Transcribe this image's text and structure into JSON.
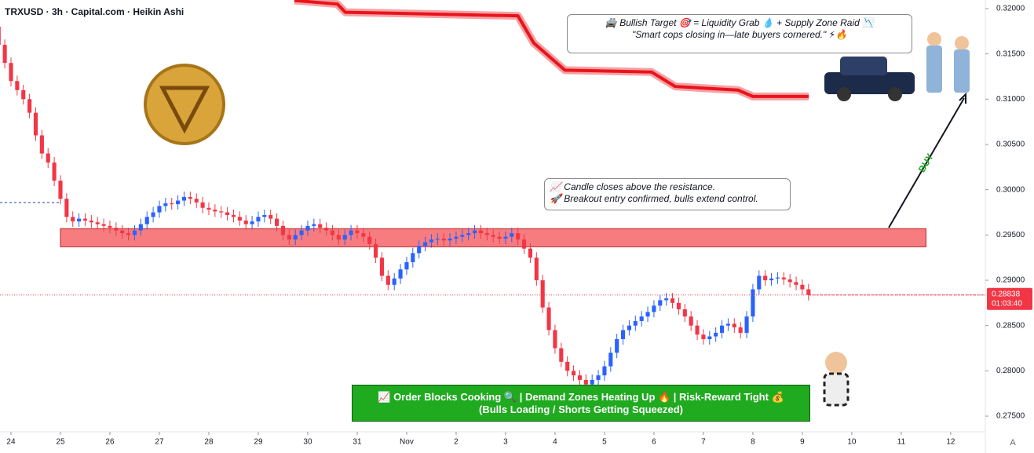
{
  "chart_data": {
    "type": "candlestick",
    "title": "TRXUSD · 3h · Capital.com · Heikin Ashi",
    "up_color": "#2962ff",
    "down_color": "#f23645",
    "xlim": [
      -0.222,
      19.7
    ],
    "ylim": [
      0.27327,
      0.32095
    ],
    "xticks": [
      {
        "value": 0,
        "label": "24"
      },
      {
        "value": 1,
        "label": "25"
      },
      {
        "value": 2,
        "label": "26"
      },
      {
        "value": 3,
        "label": "27"
      },
      {
        "value": 4,
        "label": "28"
      },
      {
        "value": 5,
        "label": "29"
      },
      {
        "value": 6,
        "label": "30"
      },
      {
        "value": 7,
        "label": "31"
      },
      {
        "value": 8,
        "label": "Nov"
      },
      {
        "value": 9,
        "label": "2"
      },
      {
        "value": 10,
        "label": "3"
      },
      {
        "value": 11,
        "label": "4"
      },
      {
        "value": 12,
        "label": "5"
      },
      {
        "value": 13,
        "label": "6"
      },
      {
        "value": 14,
        "label": "7"
      },
      {
        "value": 15,
        "label": "8"
      },
      {
        "value": 16,
        "label": "9"
      },
      {
        "value": 17,
        "label": "10"
      },
      {
        "value": 18,
        "label": "11"
      },
      {
        "value": 19,
        "label": "12"
      }
    ],
    "yticks": [
      {
        "value": 0.275,
        "label": "0.27500"
      },
      {
        "value": 0.28,
        "label": "0.28000"
      },
      {
        "value": 0.285,
        "label": "0.28500"
      },
      {
        "value": 0.29,
        "label": "0.29000"
      },
      {
        "value": 0.295,
        "label": "0.29500"
      },
      {
        "value": 0.3,
        "label": "0.30000"
      },
      {
        "value": 0.305,
        "label": "0.30500"
      },
      {
        "value": 0.31,
        "label": "0.31000"
      },
      {
        "value": 0.315,
        "label": "0.31500"
      },
      {
        "value": 0.32,
        "label": "0.32000"
      }
    ],
    "x": [
      -0.25,
      -0.125,
      0,
      0.125,
      0.25,
      0.375,
      0.5,
      0.625,
      0.75,
      0.875,
      1,
      1.125,
      1.25,
      1.375,
      1.5,
      1.625,
      1.75,
      1.875,
      2,
      2.125,
      2.25,
      2.375,
      2.5,
      2.625,
      2.75,
      2.875,
      3,
      3.125,
      3.25,
      3.375,
      3.5,
      3.625,
      3.75,
      3.875,
      4,
      4.125,
      4.25,
      4.375,
      4.5,
      4.625,
      4.75,
      4.875,
      5,
      5.125,
      5.25,
      5.375,
      5.5,
      5.625,
      5.75,
      5.875,
      6,
      6.125,
      6.25,
      6.375,
      6.5,
      6.625,
      6.75,
      6.875,
      7,
      7.125,
      7.25,
      7.375,
      7.5,
      7.625,
      7.75,
      7.875,
      8,
      8.125,
      8.25,
      8.375,
      8.5,
      8.625,
      8.75,
      8.875,
      9,
      9.125,
      9.25,
      9.375,
      9.5,
      9.625,
      9.75,
      9.875,
      10,
      10.125,
      10.25,
      10.375,
      10.5,
      10.625,
      10.75,
      10.875,
      11,
      11.125,
      11.25,
      11.375,
      11.5,
      11.625,
      11.75,
      11.875,
      12,
      12.125,
      12.25,
      12.375,
      12.5,
      12.625,
      12.75,
      12.875,
      13,
      13.125,
      13.25,
      13.375,
      13.5,
      13.625,
      13.75,
      13.875,
      14,
      14.125,
      14.25,
      14.375,
      14.5,
      14.625,
      14.75,
      14.875,
      15,
      15.125,
      15.25,
      15.375,
      15.5,
      15.625,
      15.75,
      15.875,
      16,
      16.125
    ],
    "open": [
      0.318,
      0.316,
      0.314,
      0.312,
      0.311,
      0.31,
      0.3085,
      0.306,
      0.304,
      0.303,
      0.301,
      0.299,
      0.297,
      0.2965,
      0.2968,
      0.2966,
      0.2964,
      0.2962,
      0.296,
      0.2958,
      0.2955,
      0.2952,
      0.295,
      0.2955,
      0.2962,
      0.297,
      0.2975,
      0.2982,
      0.2985,
      0.2984,
      0.2988,
      0.2992,
      0.299,
      0.2986,
      0.298,
      0.2978,
      0.2976,
      0.2975,
      0.2972,
      0.297,
      0.2966,
      0.2962,
      0.2965,
      0.297,
      0.2972,
      0.2968,
      0.296,
      0.295,
      0.2945,
      0.295,
      0.2955,
      0.296,
      0.2962,
      0.2958,
      0.2955,
      0.295,
      0.2945,
      0.295,
      0.2955,
      0.2952,
      0.2948,
      0.294,
      0.2925,
      0.2905,
      0.2895,
      0.2902,
      0.2912,
      0.292,
      0.293,
      0.2938,
      0.2942,
      0.2945,
      0.2946,
      0.2944,
      0.2946,
      0.2948,
      0.295,
      0.2952,
      0.2955,
      0.2952,
      0.295,
      0.2948,
      0.2946,
      0.2948,
      0.2952,
      0.2945,
      0.2935,
      0.2925,
      0.29,
      0.287,
      0.2845,
      0.2825,
      0.281,
      0.28,
      0.2795,
      0.279,
      0.2785,
      0.279,
      0.2795,
      0.2805,
      0.282,
      0.2835,
      0.2845,
      0.285,
      0.2855,
      0.286,
      0.2865,
      0.2872,
      0.2878,
      0.288,
      0.2875,
      0.2868,
      0.286,
      0.285,
      0.284,
      0.2835,
      0.2838,
      0.2842,
      0.285,
      0.2852,
      0.2848,
      0.2842,
      0.286,
      0.289,
      0.2905,
      0.29,
      0.2902,
      0.2903,
      0.2901,
      0.2898,
      0.2895,
      0.289
    ],
    "high": [
      0.3186,
      0.3166,
      0.3146,
      0.3126,
      0.3116,
      0.3106,
      0.3091,
      0.3066,
      0.3046,
      0.3036,
      0.3016,
      0.2996,
      0.2976,
      0.2974,
      0.2974,
      0.2972,
      0.297,
      0.2968,
      0.2966,
      0.2964,
      0.2961,
      0.2958,
      0.2961,
      0.2968,
      0.2976,
      0.2981,
      0.2988,
      0.2991,
      0.2991,
      0.2994,
      0.2998,
      0.2998,
      0.2996,
      0.2992,
      0.2986,
      0.2984,
      0.2982,
      0.2981,
      0.2978,
      0.2976,
      0.2972,
      0.2971,
      0.2976,
      0.2978,
      0.2978,
      0.2974,
      0.2966,
      0.2956,
      0.2956,
      0.2961,
      0.2966,
      0.2968,
      0.2968,
      0.2964,
      0.2961,
      0.2956,
      0.2956,
      0.2961,
      0.2961,
      0.2958,
      0.2954,
      0.2946,
      0.2931,
      0.2911,
      0.2908,
      0.2918,
      0.2926,
      0.2936,
      0.2944,
      0.2948,
      0.2951,
      0.2952,
      0.2952,
      0.2952,
      0.2954,
      0.2956,
      0.2958,
      0.2961,
      0.2961,
      0.2958,
      0.2956,
      0.2954,
      0.2954,
      0.2958,
      0.2958,
      0.2951,
      0.2941,
      0.2931,
      0.2906,
      0.2876,
      0.2851,
      0.2831,
      0.2816,
      0.2806,
      0.2801,
      0.2796,
      0.2796,
      0.2801,
      0.2811,
      0.2826,
      0.2841,
      0.2851,
      0.2856,
      0.2861,
      0.2866,
      0.2871,
      0.2878,
      0.2884,
      0.2886,
      0.2886,
      0.2881,
      0.2874,
      0.2866,
      0.2856,
      0.2846,
      0.2844,
      0.2848,
      0.2856,
      0.2858,
      0.2858,
      0.2854,
      0.2866,
      0.2896,
      0.2911,
      0.2911,
      0.2908,
      0.2909,
      0.2909,
      0.2907,
      0.2904,
      0.2901,
      0.2896
    ],
    "low": [
      0.3154,
      0.3134,
      0.3114,
      0.3104,
      0.3094,
      0.3079,
      0.3054,
      0.3034,
      0.3024,
      0.3004,
      0.2984,
      0.2964,
      0.2959,
      0.2959,
      0.296,
      0.2958,
      0.2956,
      0.2954,
      0.2952,
      0.2949,
      0.2946,
      0.2944,
      0.2944,
      0.2949,
      0.2956,
      0.2964,
      0.2969,
      0.2976,
      0.2978,
      0.2978,
      0.2982,
      0.2984,
      0.298,
      0.2974,
      0.2972,
      0.297,
      0.2969,
      0.2966,
      0.2964,
      0.296,
      0.2956,
      0.2956,
      0.2959,
      0.2964,
      0.2962,
      0.2954,
      0.2944,
      0.2939,
      0.2939,
      0.2944,
      0.2949,
      0.2954,
      0.2952,
      0.2949,
      0.2944,
      0.2939,
      0.2939,
      0.2944,
      0.2946,
      0.2942,
      0.2934,
      0.2919,
      0.2899,
      0.2889,
      0.2889,
      0.2896,
      0.2906,
      0.2914,
      0.2924,
      0.2932,
      0.2936,
      0.2939,
      0.2938,
      0.2938,
      0.294,
      0.2942,
      0.2944,
      0.2946,
      0.2946,
      0.2944,
      0.2942,
      0.294,
      0.294,
      0.2942,
      0.2939,
      0.2929,
      0.2919,
      0.2894,
      0.2864,
      0.2839,
      0.2819,
      0.2804,
      0.2794,
      0.2789,
      0.2784,
      0.2779,
      0.2779,
      0.2784,
      0.2789,
      0.2799,
      0.2814,
      0.2829,
      0.2839,
      0.2844,
      0.2849,
      0.2854,
      0.2859,
      0.2866,
      0.2872,
      0.2869,
      0.2862,
      0.2854,
      0.2844,
      0.2834,
      0.2829,
      0.2829,
      0.2832,
      0.2836,
      0.2844,
      0.2842,
      0.2836,
      0.2836,
      0.2854,
      0.2884,
      0.2894,
      0.2894,
      0.2896,
      0.2895,
      0.2892,
      0.2889,
      0.2884,
      0.28778
    ],
    "close": [
      0.316,
      0.314,
      0.312,
      0.311,
      0.31,
      0.3085,
      0.306,
      0.304,
      0.303,
      0.301,
      0.299,
      0.297,
      0.2965,
      0.2968,
      0.2966,
      0.2964,
      0.2962,
      0.296,
      0.2958,
      0.2955,
      0.2952,
      0.295,
      0.2955,
      0.2962,
      0.297,
      0.2975,
      0.2982,
      0.2985,
      0.2984,
      0.2988,
      0.2992,
      0.299,
      0.2986,
      0.298,
      0.2978,
      0.2976,
      0.2975,
      0.2972,
      0.297,
      0.2966,
      0.2962,
      0.2965,
      0.297,
      0.2972,
      0.2968,
      0.296,
      0.295,
      0.2945,
      0.295,
      0.2955,
      0.296,
      0.2962,
      0.2958,
      0.2955,
      0.295,
      0.2945,
      0.295,
      0.2955,
      0.2952,
      0.2948,
      0.294,
      0.2925,
      0.2905,
      0.2895,
      0.2902,
      0.2912,
      0.292,
      0.293,
      0.2938,
      0.2942,
      0.2945,
      0.2946,
      0.2944,
      0.2946,
      0.2948,
      0.295,
      0.2952,
      0.2955,
      0.2952,
      0.295,
      0.2948,
      0.2946,
      0.2948,
      0.2952,
      0.2945,
      0.2935,
      0.2925,
      0.29,
      0.287,
      0.2845,
      0.2825,
      0.281,
      0.28,
      0.2795,
      0.279,
      0.2785,
      0.279,
      0.2795,
      0.2805,
      0.282,
      0.2835,
      0.2845,
      0.285,
      0.2855,
      0.286,
      0.2865,
      0.2872,
      0.2878,
      0.288,
      0.2875,
      0.2868,
      0.286,
      0.285,
      0.284,
      0.2835,
      0.2838,
      0.2842,
      0.285,
      0.2852,
      0.2848,
      0.2842,
      0.286,
      0.289,
      0.2905,
      0.29,
      0.2902,
      0.2903,
      0.2901,
      0.2898,
      0.2895,
      0.289,
      0.28838
    ],
    "zone": {
      "x": [
        1,
        18.5
      ],
      "y": [
        0.2937,
        0.2957
      ],
      "color": "#f77c80"
    },
    "band": {
      "color": "#e8141c",
      "x": [
        5.73,
        6.6,
        6.76,
        10.25,
        10.57,
        11.2,
        12.95,
        13.43,
        14.7,
        15.0,
        16.13
      ],
      "values": [
        0.3209,
        0.3205,
        0.3196,
        0.3192,
        0.3162,
        0.3132,
        0.313,
        0.3114,
        0.311,
        0.3103,
        0.3103
      ]
    },
    "countdown": "01:03:40",
    "target_note": [
      "🚔 Bullish Target 🎯 = Liquidity Grab 💧 + Supply Zone Raid 📉",
      "\"Smart cops closing in—late buyers cornered.\" ⚡🔥"
    ],
    "breakout_note": [
      "📈 Candle closes above the resistance.",
      "🚀 Breakout entry confirmed, bulls extend control."
    ],
    "banner": [
      "📈 Order Blocks Cooking 🔍 | Demand Zones Heating Up 🔥 | Risk-Reward Tight 💰",
      "(Bulls Loading / Shorts Getting Squeezed)"
    ],
    "buy": "BUY",
    "auto_button": "A"
  }
}
